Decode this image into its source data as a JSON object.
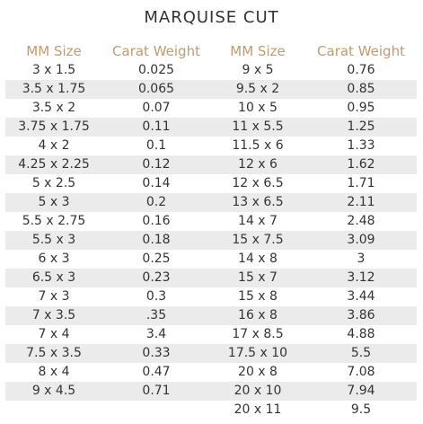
{
  "title": "MARQUISE CUT",
  "headers": [
    "MM Size",
    "Carat Weight",
    "MM Size",
    "Carat Weight"
  ],
  "accent_color": "#c29a6f",
  "stripe_color": "#ebebeb",
  "rows": [
    [
      "3 x 1.5",
      "0.025",
      "9 x 5",
      "0.76"
    ],
    [
      "3.5 x 1.75",
      "0.065",
      "9.5 x 2",
      "0.85"
    ],
    [
      "3.5 x 2",
      "0.07",
      "10 x 5",
      "0.95"
    ],
    [
      "3.75 x 1.75",
      "0.11",
      "11 x 5.5",
      "1.25"
    ],
    [
      "4 x 2",
      "0.1",
      "11.5 x 6",
      "1.33"
    ],
    [
      "4.25 x 2.25",
      "0.12",
      "12 x 6",
      "1.62"
    ],
    [
      "5 x 2.5",
      "0.14",
      "12 x 6.5",
      "1.71"
    ],
    [
      "5 x 3",
      "0.2",
      "13 x 6.5",
      "2.11"
    ],
    [
      "5.5 x 2.75",
      "0.16",
      "14 x 7",
      "2.48"
    ],
    [
      "5.5 x 3",
      "0.18",
      "15 x 7.5",
      "3.09"
    ],
    [
      "6 x 3",
      "0.25",
      "14 x 8",
      "3"
    ],
    [
      "6.5 x 3",
      "0.23",
      "15 x 7",
      "3.12"
    ],
    [
      "7 x 3",
      "0.3",
      "15 x 8",
      "3.44"
    ],
    [
      "7 x 3.5",
      ".35",
      "16 x 8",
      "3.86"
    ],
    [
      "7 x 4",
      "3.4",
      "17 x 8.5",
      "4.88"
    ],
    [
      "7.5 x 3.5",
      "0.33",
      "17.5 x 10",
      "5.5"
    ],
    [
      "8 x 4",
      "0.47",
      "20 x 8",
      "7.08"
    ],
    [
      "9 x 4.5",
      "0.71",
      "20 x 10",
      "7.94"
    ],
    [
      "",
      "",
      "20 x 11",
      "9.5"
    ]
  ]
}
